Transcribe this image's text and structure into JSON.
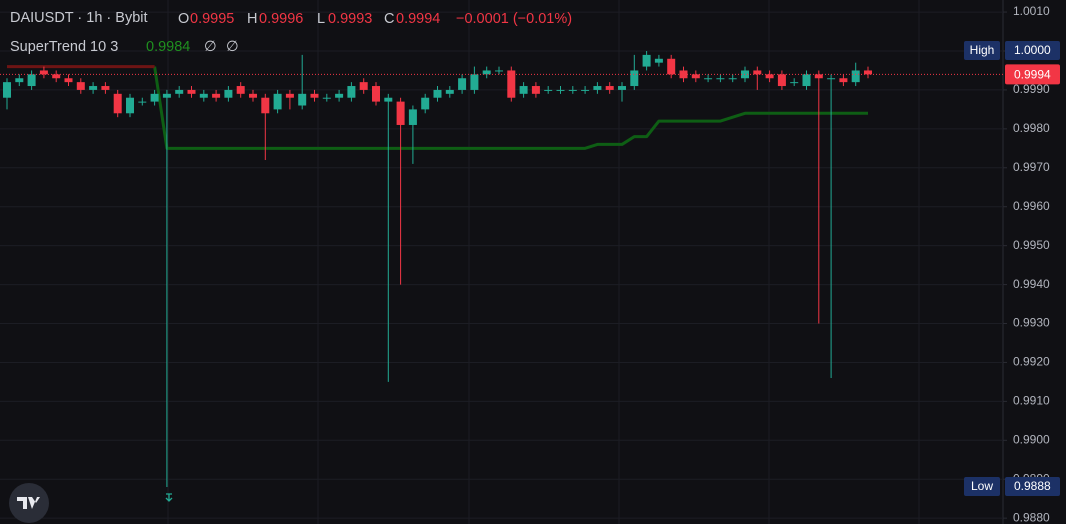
{
  "chart_data": {
    "type": "candlestick",
    "symbol": "DAIUSDT · 1h · Bybit",
    "ohlc_labels": [
      "O",
      "H",
      "L",
      "C"
    ],
    "ohlc_values": [
      0.9995,
      0.9996,
      0.9993,
      0.9994
    ],
    "change": "−0.0001 (−0.01%)",
    "open": [
      0.9988,
      0.9992,
      0.9991,
      0.9995,
      0.9994,
      0.9993,
      0.9992,
      0.999,
      0.9991,
      0.9989,
      0.9984,
      0.9987,
      0.9987,
      0.9988,
      0.9989,
      0.999,
      0.9988,
      0.9989,
      0.9988,
      0.9991,
      0.9989,
      0.9988,
      0.9985,
      0.9989,
      0.9986,
      0.9989,
      0.9988,
      0.9988,
      0.9988,
      0.9992,
      0.9991,
      0.9987,
      0.9987,
      0.9981,
      0.9985,
      0.9988,
      0.9989,
      0.999,
      0.999,
      0.9994,
      0.9995,
      0.9995,
      0.9989,
      0.9991,
      0.999,
      0.999,
      0.999,
      0.999,
      0.999,
      0.9991,
      0.999,
      0.9991,
      0.9996,
      0.9997,
      0.9998,
      0.9995,
      0.9994,
      0.9993,
      0.9993,
      0.9993,
      0.9993,
      0.9995,
      0.9994,
      0.9994,
      0.9992,
      0.9991,
      0.9994,
      0.9993,
      0.9993,
      0.9992,
      0.9995
    ],
    "high": [
      0.9993,
      0.9994,
      0.9995,
      0.9996,
      0.9995,
      0.9994,
      0.9993,
      0.9992,
      0.9992,
      0.999,
      0.9989,
      0.9988,
      0.999,
      0.999,
      0.9991,
      0.9991,
      0.999,
      0.999,
      0.9991,
      0.9992,
      0.999,
      0.9989,
      0.999,
      0.999,
      0.9999,
      0.999,
      0.9989,
      0.999,
      0.9992,
      0.9993,
      0.9992,
      0.9989,
      0.9988,
      0.9986,
      0.9989,
      0.9991,
      0.9991,
      0.9994,
      0.9996,
      0.9996,
      0.9996,
      0.9996,
      0.9992,
      0.9992,
      0.9991,
      0.9991,
      0.9991,
      0.9991,
      0.9992,
      0.9992,
      0.9992,
      0.9999,
      1.0,
      0.9999,
      0.9999,
      0.9996,
      0.9995,
      0.9994,
      0.9994,
      0.9994,
      0.9996,
      0.9996,
      0.9995,
      0.9995,
      0.9993,
      0.9995,
      0.9995,
      0.9994,
      0.9994,
      0.9997,
      0.9996
    ],
    "low": [
      0.9985,
      0.9991,
      0.999,
      0.9993,
      0.9992,
      0.9991,
      0.9989,
      0.9989,
      0.9989,
      0.9983,
      0.9983,
      0.9986,
      0.9986,
      0.9888,
      0.9988,
      0.9988,
      0.9987,
      0.9987,
      0.9987,
      0.9988,
      0.9987,
      0.9972,
      0.9984,
      0.9985,
      0.9985,
      0.9987,
      0.9987,
      0.9987,
      0.9987,
      0.9989,
      0.9986,
      0.9915,
      0.994,
      0.9971,
      0.9984,
      0.9987,
      0.9988,
      0.9989,
      0.9989,
      0.9993,
      0.9994,
      0.9987,
      0.9988,
      0.9988,
      0.9989,
      0.9989,
      0.9989,
      0.9989,
      0.9989,
      0.9989,
      0.9987,
      0.999,
      0.9995,
      0.9996,
      0.9993,
      0.9992,
      0.9992,
      0.9992,
      0.9992,
      0.9992,
      0.9992,
      0.999,
      0.9992,
      0.999,
      0.9991,
      0.999,
      0.993,
      0.9916,
      0.9991,
      0.9991,
      0.9993
    ],
    "close": [
      0.9992,
      0.9993,
      0.9994,
      0.9994,
      0.9993,
      0.9992,
      0.999,
      0.9991,
      0.999,
      0.9984,
      0.9988,
      0.9987,
      0.9989,
      0.9989,
      0.999,
      0.9989,
      0.9989,
      0.9988,
      0.999,
      0.9989,
      0.9988,
      0.9984,
      0.9989,
      0.9988,
      0.9989,
      0.9988,
      0.9988,
      0.9989,
      0.9991,
      0.999,
      0.9987,
      0.9988,
      0.9981,
      0.9985,
      0.9988,
      0.999,
      0.999,
      0.9993,
      0.9994,
      0.9995,
      0.9995,
      0.9988,
      0.9991,
      0.9989,
      0.999,
      0.999,
      0.999,
      0.999,
      0.9991,
      0.999,
      0.9991,
      0.9995,
      0.9999,
      0.9998,
      0.9994,
      0.9993,
      0.9993,
      0.9993,
      0.9993,
      0.9993,
      0.9995,
      0.9994,
      0.9993,
      0.9991,
      0.9992,
      0.9994,
      0.9993,
      0.9993,
      0.9992,
      0.9995,
      0.9994
    ],
    "up_color": "#22ab94",
    "down_color": "#f23645",
    "ylim": [
      0.98785,
      1.00131
    ],
    "yticks": [
      {
        "value": 1.001,
        "label": "1.0010"
      },
      {
        "value": 1.0,
        "label": "1.0000"
      },
      {
        "value": 0.999,
        "label": "0.9990"
      },
      {
        "value": 0.998,
        "label": "0.9980"
      },
      {
        "value": 0.997,
        "label": "0.9970"
      },
      {
        "value": 0.996,
        "label": "0.9960"
      },
      {
        "value": 0.995,
        "label": "0.9950"
      },
      {
        "value": 0.994,
        "label": "0.9940"
      },
      {
        "value": 0.993,
        "label": "0.9930"
      },
      {
        "value": 0.992,
        "label": "0.9920"
      },
      {
        "value": 0.991,
        "label": "0.9910"
      },
      {
        "value": 0.99,
        "label": "0.9900"
      },
      {
        "value": 0.989,
        "label": "0.9890"
      },
      {
        "value": 0.988,
        "label": "0.9880"
      }
    ],
    "grid": true,
    "indicator": {
      "name": "SuperTrend 10 3",
      "value": 0.9984,
      "value_color": "#1f8f1f",
      "icons": [
        "∅",
        "∅"
      ],
      "series": [
        {
          "color": "#0e5e14",
          "values": [
            null,
            null,
            null,
            null,
            null,
            null,
            null,
            null,
            null,
            null,
            null,
            null,
            0.9996,
            0.9975,
            0.9975,
            0.9975,
            0.9975,
            0.9975,
            0.9975,
            0.9975,
            0.9975,
            0.9975,
            0.9975,
            0.9975,
            0.9975,
            0.9975,
            0.9975,
            0.9975,
            0.9975,
            0.9975,
            0.9975,
            0.9975,
            0.9975,
            0.9975,
            0.9975,
            0.9975,
            0.9975,
            0.9975,
            0.9975,
            0.9975,
            0.9975,
            0.9975,
            0.9975,
            0.9975,
            0.9975,
            0.9975,
            0.9975,
            0.9975,
            0.9976,
            0.9976,
            0.9976,
            0.9978,
            0.9978,
            0.9982,
            0.9982,
            0.9982,
            0.9982,
            0.9982,
            0.9982,
            0.9983,
            0.9984,
            0.9984,
            0.9984,
            0.9984,
            0.9984,
            0.9984,
            0.9984,
            0.9984,
            0.9984,
            0.9984,
            0.9984
          ]
        },
        {
          "color": "#6e1414",
          "values": [
            0.9996,
            0.9996,
            0.9996,
            0.9996,
            0.9996,
            0.9996,
            0.9996,
            0.9996,
            0.9996,
            0.9996,
            0.9996,
            0.9996,
            0.9996,
            null,
            null,
            null,
            null,
            null,
            null,
            null,
            null,
            null,
            null,
            null,
            null,
            null,
            null,
            null,
            null,
            null,
            null,
            null,
            null,
            null,
            null,
            null,
            null,
            null,
            null,
            null,
            null,
            null,
            null,
            null,
            null,
            null,
            null,
            null,
            null,
            null,
            null,
            null,
            null,
            null,
            null,
            null,
            null,
            null,
            null,
            null,
            null,
            null,
            null,
            null,
            null,
            null,
            null,
            null,
            null,
            null,
            null
          ]
        }
      ]
    },
    "high_tag": {
      "label": "High",
      "value": {
        "value": 1,
        "label": "1.0000"
      }
    },
    "low_tag": {
      "label": "Low",
      "value": 0.9888
    },
    "last_price": 0.9994,
    "tag_color": "#1c3166"
  }
}
